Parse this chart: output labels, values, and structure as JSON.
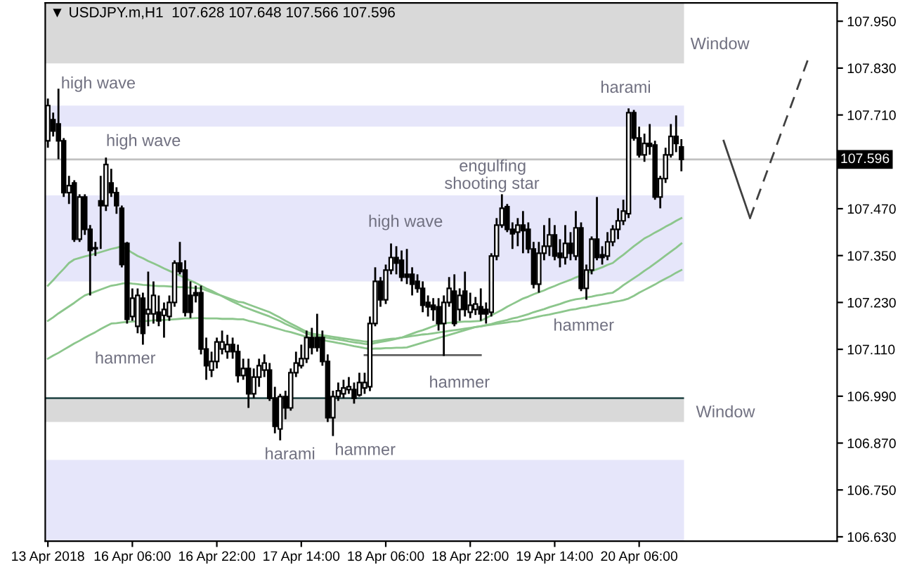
{
  "chart_data": {
    "type": "candlestick",
    "title": "▼ USDJPY.m,H1  107.628 107.648 107.566 107.596",
    "categories": [
      "13 Apr 2018",
      null,
      null,
      null,
      null,
      null,
      null,
      null,
      null,
      null,
      null,
      null,
      null,
      null,
      null,
      null,
      "16 Apr 06:00",
      null,
      null,
      null,
      null,
      null,
      null,
      null,
      null,
      null,
      null,
      null,
      null,
      null,
      null,
      null,
      "16 Apr 22:00",
      null,
      null,
      null,
      null,
      null,
      null,
      null,
      null,
      null,
      null,
      null,
      null,
      null,
      null,
      null,
      "17 Apr 14:00",
      null,
      null,
      null,
      null,
      null,
      null,
      null,
      null,
      null,
      null,
      null,
      null,
      null,
      null,
      null,
      "18 Apr 06:00",
      null,
      null,
      null,
      null,
      null,
      null,
      null,
      null,
      null,
      null,
      null,
      null,
      null,
      null,
      null,
      "18 Apr 22:00",
      null,
      null,
      null,
      null,
      null,
      null,
      null,
      null,
      null,
      null,
      null,
      null,
      null,
      null,
      null,
      "19 Apr 14:00",
      null,
      null,
      null,
      null,
      null,
      null,
      null,
      null,
      null,
      null,
      null,
      null,
      null,
      null,
      null,
      "20 Apr 06:00",
      null,
      null,
      null,
      null,
      null,
      null,
      null,
      null,
      null,
      null,
      null,
      null,
      null,
      null,
      null,
      null,
      null,
      null,
      null,
      null,
      null,
      null,
      null,
      null,
      null,
      null,
      null,
      null,
      null,
      null,
      null,
      null,
      null,
      null,
      null,
      null,
      null
    ],
    "ohlc": [
      [
        107.644,
        107.752,
        107.626,
        107.734
      ],
      [
        107.698,
        107.716,
        107.655,
        107.669
      ],
      [
        107.687,
        107.777,
        107.597,
        107.644
      ],
      [
        107.644,
        107.651,
        107.5,
        107.511
      ],
      [
        107.511,
        107.554,
        107.482,
        107.529
      ],
      [
        107.536,
        107.543,
        107.385,
        107.392
      ],
      [
        107.392,
        107.507,
        107.385,
        107.5
      ],
      [
        107.5,
        107.507,
        107.403,
        107.417
      ],
      [
        107.417,
        107.428,
        107.248,
        107.363
      ],
      [
        107.367,
        107.385,
        107.349,
        107.37
      ],
      [
        107.49,
        107.554,
        107.367,
        107.478
      ],
      [
        107.478,
        107.601,
        107.464,
        107.583
      ],
      [
        107.536,
        107.572,
        107.5,
        107.511
      ],
      [
        107.511,
        107.525,
        107.457,
        107.478
      ],
      [
        107.471,
        107.478,
        107.32,
        107.327
      ],
      [
        107.381,
        107.385,
        107.176,
        107.187
      ],
      [
        107.194,
        107.266,
        107.183,
        107.241
      ],
      [
        107.169,
        107.266,
        107.151,
        107.248
      ],
      [
        107.241,
        107.255,
        107.122,
        107.151
      ],
      [
        107.201,
        107.309,
        107.169,
        107.212
      ],
      [
        107.201,
        107.284,
        107.176,
        107.248
      ],
      [
        107.205,
        107.248,
        107.169,
        107.183
      ],
      [
        107.197,
        107.23,
        107.14,
        107.212
      ],
      [
        107.194,
        107.248,
        107.183,
        107.23
      ],
      [
        107.23,
        107.338,
        107.219,
        107.331
      ],
      [
        107.331,
        107.385,
        107.302,
        107.309
      ],
      [
        107.313,
        107.338,
        107.194,
        107.205
      ],
      [
        107.248,
        107.284,
        107.19,
        107.205
      ],
      [
        107.255,
        107.273,
        107.23,
        107.248
      ],
      [
        107.255,
        107.273,
        107.097,
        107.111
      ],
      [
        107.111,
        107.14,
        107.032,
        107.068
      ],
      [
        107.057,
        107.104,
        107.039,
        107.079
      ],
      [
        107.079,
        107.14,
        107.061,
        107.129
      ],
      [
        107.111,
        107.158,
        107.097,
        107.129
      ],
      [
        107.104,
        107.147,
        107.086,
        107.122
      ],
      [
        107.122,
        107.14,
        107.086,
        107.104
      ],
      [
        107.104,
        107.122,
        107.025,
        107.043
      ],
      [
        107.043,
        107.086,
        107.032,
        107.061
      ],
      [
        107.061,
        107.086,
        106.96,
        106.996
      ],
      [
        106.996,
        107.061,
        106.985,
        107.039
      ],
      [
        107.039,
        107.086,
        107.014,
        107.068
      ],
      [
        107.057,
        107.097,
        107.039,
        107.075
      ],
      [
        107.057,
        107.075,
        106.978,
        106.985
      ],
      [
        106.985,
        107.014,
        106.895,
        106.913
      ],
      [
        106.906,
        106.996,
        106.877,
        106.989
      ],
      [
        106.989,
        107.004,
        106.931,
        106.96
      ],
      [
        106.96,
        107.061,
        106.953,
        107.05
      ],
      [
        107.05,
        107.104,
        107.039,
        107.075
      ],
      [
        107.068,
        107.122,
        107.061,
        107.086
      ],
      [
        107.086,
        107.158,
        107.075,
        107.14
      ],
      [
        107.14,
        107.165,
        107.097,
        107.115
      ],
      [
        107.14,
        107.201,
        107.104,
        107.115
      ],
      [
        107.14,
        107.158,
        107.068,
        107.079
      ],
      [
        107.079,
        107.097,
        106.924,
        106.935
      ],
      [
        106.935,
        107.004,
        106.888,
        106.989
      ],
      [
        106.989,
        107.025,
        106.978,
        107.004
      ],
      [
        106.996,
        107.032,
        106.985,
        107.011
      ],
      [
        107.007,
        107.039,
        106.996,
        107.014
      ],
      [
        107.007,
        107.025,
        106.971,
        106.985
      ],
      [
        106.993,
        107.05,
        106.989,
        107.025
      ],
      [
        107.011,
        107.05,
        106.996,
        107.025
      ],
      [
        107.014,
        107.194,
        107.003,
        107.176
      ],
      [
        107.176,
        107.32,
        107.169,
        107.284
      ],
      [
        107.284,
        107.295,
        107.219,
        107.237
      ],
      [
        107.237,
        107.327,
        107.226,
        107.313
      ],
      [
        107.313,
        107.381,
        107.302,
        107.345
      ],
      [
        107.345,
        107.374,
        107.302,
        107.331
      ],
      [
        107.338,
        107.363,
        107.284,
        107.295
      ],
      [
        107.302,
        107.367,
        107.277,
        107.295
      ],
      [
        107.302,
        107.32,
        107.248,
        107.277
      ],
      [
        107.284,
        107.302,
        107.255,
        107.266
      ],
      [
        107.266,
        107.284,
        107.205,
        107.223
      ],
      [
        107.23,
        107.248,
        107.194,
        107.219
      ],
      [
        107.223,
        107.241,
        107.183,
        107.212
      ],
      [
        107.219,
        107.241,
        107.158,
        107.176
      ],
      [
        107.176,
        107.248,
        107.093,
        107.23
      ],
      [
        107.23,
        107.295,
        107.219,
        107.266
      ],
      [
        107.259,
        107.302,
        107.169,
        107.176
      ],
      [
        107.212,
        107.266,
        107.183,
        107.248
      ],
      [
        107.259,
        107.309,
        107.194,
        107.212
      ],
      [
        107.205,
        107.255,
        107.19,
        107.223
      ],
      [
        107.212,
        107.244,
        107.198,
        107.226
      ],
      [
        107.219,
        107.266,
        107.183,
        107.201
      ],
      [
        107.212,
        107.23,
        107.176,
        107.201
      ],
      [
        107.205,
        107.356,
        107.194,
        107.349
      ],
      [
        107.349,
        107.446,
        107.338,
        107.428
      ],
      [
        107.428,
        107.507,
        107.421,
        107.471
      ],
      [
        107.475,
        107.482,
        107.41,
        107.417
      ],
      [
        107.417,
        107.435,
        107.367,
        107.406
      ],
      [
        107.41,
        107.446,
        107.374,
        107.428
      ],
      [
        107.428,
        107.464,
        107.356,
        107.414
      ],
      [
        107.417,
        107.435,
        107.356,
        107.367
      ],
      [
        107.367,
        107.385,
        107.266,
        107.277
      ],
      [
        107.277,
        107.385,
        107.255,
        107.356
      ],
      [
        107.356,
        107.428,
        107.338,
        107.374
      ],
      [
        107.374,
        107.446,
        107.349,
        107.403
      ],
      [
        107.403,
        107.428,
        107.338,
        107.349
      ],
      [
        107.356,
        107.392,
        107.32,
        107.345
      ],
      [
        107.345,
        107.428,
        107.327,
        107.381
      ],
      [
        107.381,
        107.41,
        107.338,
        107.356
      ],
      [
        107.349,
        107.464,
        107.338,
        107.421
      ],
      [
        107.421,
        107.435,
        107.259,
        107.266
      ],
      [
        107.266,
        107.327,
        107.237,
        107.313
      ],
      [
        107.313,
        107.399,
        107.302,
        107.392
      ],
      [
        107.392,
        107.5,
        107.338,
        107.345
      ],
      [
        107.352,
        107.374,
        107.327,
        107.345
      ],
      [
        107.349,
        107.41,
        107.338,
        107.385
      ],
      [
        107.385,
        107.428,
        107.374,
        107.417
      ],
      [
        107.417,
        107.471,
        107.392,
        107.439
      ],
      [
        107.439,
        107.493,
        107.428,
        107.464
      ],
      [
        107.457,
        107.727,
        107.446,
        107.716
      ],
      [
        107.716,
        107.723,
        107.644,
        107.651
      ],
      [
        107.651,
        107.68,
        107.601,
        107.608
      ],
      [
        107.608,
        107.662,
        107.59,
        107.637
      ],
      [
        107.637,
        107.687,
        107.608,
        107.63
      ],
      [
        107.633,
        107.644,
        107.493,
        107.5
      ],
      [
        107.5,
        107.554,
        107.471,
        107.547
      ],
      [
        107.547,
        107.626,
        107.536,
        107.608
      ],
      [
        107.608,
        107.687,
        107.601,
        107.655
      ],
      [
        107.655,
        107.709,
        107.615,
        107.637
      ],
      [
        107.628,
        107.648,
        107.566,
        107.596
      ],
      null,
      null,
      null,
      null,
      null,
      null,
      null,
      null,
      null,
      null,
      null,
      null,
      null,
      null,
      null,
      null,
      null,
      null,
      null,
      null,
      null,
      null,
      null,
      null,
      null,
      null,
      null,
      null,
      null
    ],
    "series": [
      {
        "type": "line",
        "color": "#8cc68c",
        "values": [
          107.273,
          107.287,
          107.302,
          107.316,
          107.331,
          107.34,
          107.344,
          107.348,
          107.351,
          107.355,
          107.359,
          107.363,
          107.367,
          107.37,
          107.374,
          107.366,
          107.357,
          107.349,
          107.343,
          107.336,
          107.33,
          107.324,
          107.317,
          107.311,
          107.305,
          107.299,
          107.292,
          107.286,
          107.28,
          107.273,
          107.266,
          107.26,
          107.253,
          107.246,
          107.239,
          107.232,
          107.226,
          107.219,
          107.214,
          107.209,
          107.204,
          107.199,
          107.194,
          107.188,
          107.182,
          107.175,
          107.169,
          107.163,
          107.157,
          107.15,
          107.146,
          107.144,
          107.142,
          107.139,
          107.137,
          107.135,
          107.133,
          107.13,
          107.128,
          107.126,
          107.124,
          107.123,
          107.126,
          107.129,
          107.131,
          107.134,
          107.137,
          107.14,
          107.145,
          107.15,
          107.155,
          107.159,
          107.164,
          107.169,
          107.174,
          107.177,
          107.178,
          107.179,
          107.18,
          107.181,
          107.181,
          107.182,
          107.183,
          107.19,
          107.197,
          107.204,
          107.211,
          107.219,
          107.226,
          107.233,
          107.24,
          107.245,
          107.251,
          107.256,
          107.261,
          107.267,
          107.272,
          107.278,
          107.283,
          107.288,
          107.294,
          107.299,
          107.305,
          107.31,
          107.315,
          107.32,
          107.326,
          107.331,
          107.342,
          107.352,
          107.363,
          107.374,
          107.384,
          107.394,
          107.401,
          107.409,
          107.416,
          107.424,
          107.431,
          107.439,
          107.446,
          null,
          null,
          null,
          null,
          null,
          null,
          null,
          null,
          null,
          null,
          null,
          null,
          null,
          null,
          null,
          null,
          null,
          null,
          null,
          null,
          null,
          null,
          null,
          null,
          null,
          null,
          null,
          null,
          null
        ]
      },
      {
        "type": "line",
        "color": "#8cc68c",
        "values": [
          107.183,
          107.192,
          107.202,
          107.211,
          107.22,
          107.229,
          107.239,
          107.248,
          107.253,
          107.258,
          107.263,
          107.268,
          107.273,
          107.275,
          107.278,
          107.28,
          107.278,
          107.277,
          107.275,
          107.274,
          107.273,
          107.272,
          107.272,
          107.271,
          107.27,
          107.269,
          107.269,
          107.268,
          107.267,
          107.266,
          107.261,
          107.256,
          107.251,
          107.247,
          107.242,
          107.237,
          107.232,
          107.23,
          107.225,
          107.22,
          107.215,
          107.21,
          107.205,
          107.198,
          107.191,
          107.183,
          107.176,
          107.169,
          107.162,
          107.155,
          107.15,
          107.148,
          107.146,
          107.144,
          107.142,
          107.14,
          107.138,
          107.136,
          107.134,
          107.132,
          107.13,
          107.129,
          107.131,
          107.133,
          107.135,
          107.137,
          107.138,
          107.14,
          107.142,
          107.144,
          107.146,
          107.148,
          107.149,
          107.151,
          107.153,
          107.155,
          107.157,
          107.159,
          107.161,
          107.163,
          107.165,
          107.167,
          107.169,
          107.172,
          107.175,
          107.179,
          107.182,
          107.185,
          107.189,
          107.192,
          107.196,
          107.2,
          107.205,
          107.209,
          107.213,
          107.218,
          107.222,
          107.226,
          107.231,
          107.235,
          107.238,
          107.24,
          107.243,
          107.245,
          107.248,
          107.25,
          107.253,
          107.255,
          107.264,
          107.274,
          107.283,
          107.292,
          107.301,
          107.311,
          107.32,
          107.33,
          107.34,
          107.35,
          107.36,
          107.37,
          107.381,
          null,
          null,
          null,
          null,
          null,
          null,
          null,
          null,
          null,
          null,
          null,
          null,
          null,
          null,
          null,
          null,
          null,
          null,
          null,
          null,
          null,
          null,
          null,
          null,
          null,
          null,
          null,
          null,
          null
        ]
      },
      {
        "type": "line",
        "color": "#8cc68c",
        "values": [
          107.086,
          107.094,
          107.101,
          107.109,
          107.117,
          107.125,
          107.132,
          107.14,
          107.147,
          107.154,
          107.162,
          107.169,
          107.176,
          107.177,
          107.179,
          107.18,
          107.181,
          107.182,
          107.182,
          107.183,
          107.184,
          107.185,
          107.185,
          107.186,
          107.187,
          107.188,
          107.189,
          107.189,
          107.19,
          107.19,
          107.189,
          107.189,
          107.189,
          107.188,
          107.188,
          107.188,
          107.187,
          107.187,
          107.183,
          107.18,
          107.176,
          107.173,
          107.169,
          107.165,
          107.161,
          107.157,
          107.154,
          107.15,
          107.146,
          107.142,
          107.139,
          107.136,
          107.134,
          107.131,
          107.129,
          107.126,
          107.124,
          107.121,
          107.118,
          107.116,
          107.113,
          107.111,
          107.112,
          107.112,
          107.113,
          107.113,
          107.114,
          107.114,
          107.115,
          107.119,
          107.123,
          107.127,
          107.131,
          107.135,
          107.139,
          107.143,
          107.147,
          107.151,
          107.155,
          107.159,
          107.163,
          107.167,
          107.169,
          107.171,
          107.173,
          107.175,
          107.177,
          107.179,
          107.181,
          107.182,
          107.185,
          107.188,
          107.191,
          107.194,
          107.197,
          107.199,
          107.202,
          107.205,
          107.208,
          107.211,
          107.213,
          107.216,
          107.218,
          107.221,
          107.223,
          107.226,
          107.228,
          107.231,
          107.233,
          107.236,
          107.24,
          107.247,
          107.255,
          107.262,
          107.269,
          107.276,
          107.284,
          107.291,
          107.298,
          107.306,
          107.313,
          null,
          null,
          null,
          null,
          null,
          null,
          null,
          null,
          null,
          null,
          null,
          null,
          null,
          null,
          null,
          null,
          null,
          null,
          null,
          null,
          null,
          null,
          null,
          null,
          null,
          null,
          null,
          null,
          null
        ]
      },
      {
        "type": "line",
        "color": "#606060",
        "line_style": "solid",
        "values": [
          null,
          null,
          null,
          null,
          null,
          null,
          null,
          null,
          null,
          null,
          null,
          null,
          null,
          null,
          null,
          null,
          null,
          null,
          null,
          null,
          null,
          null,
          null,
          null,
          null,
          null,
          null,
          null,
          null,
          null,
          null,
          null,
          null,
          null,
          null,
          null,
          null,
          null,
          null,
          null,
          null,
          null,
          null,
          null,
          null,
          null,
          null,
          null,
          null,
          null,
          null,
          null,
          null,
          null,
          null,
          null,
          null,
          null,
          null,
          null,
          107.095,
          107.095,
          107.095,
          107.095,
          107.095,
          107.095,
          107.095,
          107.095,
          107.095,
          107.095,
          107.095,
          107.095,
          107.095,
          107.095,
          107.095,
          107.095,
          107.095,
          107.095,
          107.095,
          107.095,
          107.095,
          107.095,
          107.095,
          null,
          null,
          null,
          null,
          null,
          null,
          null,
          null,
          null,
          null,
          null,
          null,
          null,
          null,
          null,
          null,
          null,
          null,
          null,
          null,
          null,
          null,
          null,
          null,
          null,
          null,
          null,
          null,
          null,
          null,
          null,
          null,
          null,
          null,
          null,
          null,
          null,
          null,
          null,
          null,
          null,
          null,
          null,
          null,
          null,
          null,
          null,
          null,
          null,
          null,
          null,
          null,
          null,
          null,
          null,
          null,
          null,
          null,
          null,
          null,
          null,
          null,
          null,
          null,
          null,
          null,
          null
        ]
      },
      {
        "type": "line",
        "color": "#404040",
        "line_style": "solid",
        "values": [
          null,
          null,
          null,
          null,
          null,
          null,
          null,
          null,
          null,
          null,
          null,
          null,
          null,
          null,
          null,
          null,
          null,
          null,
          null,
          null,
          null,
          null,
          null,
          null,
          null,
          null,
          null,
          null,
          null,
          null,
          null,
          null,
          null,
          null,
          null,
          null,
          null,
          null,
          null,
          null,
          null,
          null,
          null,
          null,
          null,
          null,
          null,
          null,
          null,
          null,
          null,
          null,
          null,
          null,
          null,
          null,
          null,
          null,
          null,
          null,
          null,
          null,
          null,
          null,
          null,
          null,
          null,
          null,
          null,
          null,
          null,
          null,
          null,
          null,
          null,
          null,
          null,
          null,
          null,
          null,
          null,
          null,
          null,
          null,
          null,
          null,
          null,
          null,
          null,
          null,
          null,
          null,
          null,
          null,
          null,
          null,
          null,
          null,
          null,
          null,
          null,
          null,
          null,
          null,
          null,
          null,
          null,
          null,
          null,
          null,
          null,
          null,
          null,
          null,
          null,
          null,
          null,
          null,
          null,
          null,
          null,
          null,
          null,
          null,
          null,
          null,
          null,
          null,
          107.644,
          107.604,
          107.565,
          107.525,
          107.486,
          107.446,
          null,
          null,
          null,
          null,
          null,
          null,
          null,
          null,
          null,
          null,
          null,
          null,
          null,
          null,
          null,
          null
        ]
      },
      {
        "type": "line",
        "color": "#404040",
        "line_style": "dashed",
        "values": [
          null,
          null,
          null,
          null,
          null,
          null,
          null,
          null,
          null,
          null,
          null,
          null,
          null,
          null,
          null,
          null,
          null,
          null,
          null,
          null,
          null,
          null,
          null,
          null,
          null,
          null,
          null,
          null,
          null,
          null,
          null,
          null,
          null,
          null,
          null,
          null,
          null,
          null,
          null,
          null,
          null,
          null,
          null,
          null,
          null,
          null,
          null,
          null,
          null,
          null,
          null,
          null,
          null,
          null,
          null,
          null,
          null,
          null,
          null,
          null,
          null,
          null,
          null,
          null,
          null,
          null,
          null,
          null,
          null,
          null,
          null,
          null,
          null,
          null,
          null,
          null,
          null,
          null,
          null,
          null,
          null,
          null,
          null,
          null,
          null,
          null,
          null,
          null,
          null,
          null,
          null,
          null,
          null,
          null,
          null,
          null,
          null,
          null,
          null,
          null,
          null,
          null,
          null,
          null,
          null,
          null,
          null,
          null,
          null,
          null,
          null,
          null,
          null,
          null,
          null,
          null,
          null,
          null,
          null,
          null,
          null,
          null,
          null,
          null,
          null,
          null,
          null,
          null,
          null,
          null,
          null,
          null,
          null,
          107.446,
          107.483,
          107.52,
          107.557,
          107.594,
          107.631,
          107.668,
          107.705,
          107.742,
          107.779,
          107.816,
          107.853,
          null,
          null,
          null,
          null,
          null
        ]
      }
    ],
    "bands": [
      {
        "axis": "y",
        "from": 107.842,
        "to": 107.997,
        "color": "#d9d9d9"
      },
      {
        "axis": "y",
        "from": 107.68,
        "to": 107.734,
        "color": "#e6e6fa"
      },
      {
        "axis": "y",
        "from": 107.284,
        "to": 107.504,
        "color": "#e6e6fa"
      },
      {
        "axis": "y",
        "from": 106.924,
        "to": 106.985,
        "color": "#d9d9d9"
      },
      {
        "axis": "y",
        "from": 106.619,
        "to": 106.827,
        "color": "#e6e6fa"
      }
    ],
    "ref_lines": [
      {
        "axis": "y",
        "value": 107.596,
        "label": "107.596",
        "color": "#c0c0c0"
      },
      {
        "axis": "y",
        "value": 106.985,
        "color": "#2f4f4f"
      }
    ],
    "annotations": [
      "high wave",
      "high wave",
      "hammer",
      "harami",
      "hammer",
      "high wave",
      {
        "text": "hammer",
        "y": 107.093
      },
      "engulfing",
      {
        "text": "shooting star",
        "y": 107.507
      },
      {
        "text": "hammer",
        "y": 107.259
      },
      "harami",
      "Window",
      "Window"
    ],
    "ylim": [
      106.619,
      107.997
    ],
    "yticks": [
      {
        "value": 107.95,
        "label": "107.950"
      },
      {
        "value": 107.83,
        "label": "107.830"
      },
      {
        "value": 107.71,
        "label": "107.710"
      },
      {
        "value": 107.47,
        "label": "107.470"
      },
      {
        "value": 107.35,
        "label": "107.350"
      },
      {
        "value": 107.23,
        "label": "107.230"
      },
      {
        "value": 107.11,
        "label": "107.110"
      },
      {
        "value": 106.99,
        "label": "106.990"
      },
      {
        "value": 106.87,
        "label": "106.870"
      },
      {
        "value": 106.75,
        "label": "106.750"
      },
      {
        "value": 106.63,
        "label": "106.630"
      }
    ]
  }
}
